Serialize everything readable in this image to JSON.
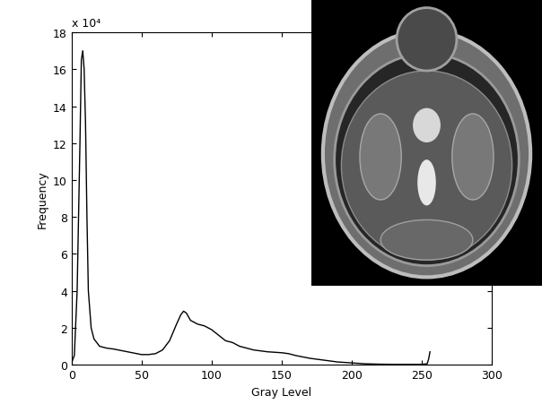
{
  "chart_data": {
    "type": "line",
    "x_label": "Gray Level",
    "y_label": "Frequency",
    "annotations": [
      "x 10⁴"
    ],
    "x": [
      0,
      2,
      4,
      6,
      7,
      8,
      9,
      10,
      11,
      12,
      14,
      16,
      20,
      25,
      30,
      40,
      50,
      55,
      60,
      65,
      70,
      75,
      78,
      80,
      82,
      85,
      90,
      95,
      100,
      105,
      110,
      115,
      120,
      130,
      140,
      150,
      155,
      160,
      170,
      180,
      190,
      200,
      210,
      220,
      230,
      240,
      250,
      254,
      255,
      256
    ],
    "values": [
      0.1,
      0.5,
      4,
      12,
      16.5,
      17,
      16,
      13,
      8,
      4,
      2,
      1.4,
      1.0,
      0.9,
      0.85,
      0.7,
      0.55,
      0.55,
      0.6,
      0.8,
      1.3,
      2.2,
      2.7,
      2.9,
      2.8,
      2.4,
      2.2,
      2.1,
      1.9,
      1.6,
      1.3,
      1.2,
      1.0,
      0.8,
      0.7,
      0.65,
      0.6,
      0.5,
      0.35,
      0.25,
      0.15,
      0.1,
      0.05,
      0.03,
      0.02,
      0.02,
      0.02,
      0.05,
      0.3,
      0.7
    ],
    "color": "#000000",
    "xlim": [
      0,
      300
    ],
    "xticks": [
      0,
      50,
      100,
      150,
      200,
      250,
      300
    ],
    "ylim": [
      0,
      18
    ],
    "yticks": [
      0,
      2,
      4,
      6,
      8,
      10,
      12,
      14,
      16,
      18
    ],
    "grid": false
  }
}
